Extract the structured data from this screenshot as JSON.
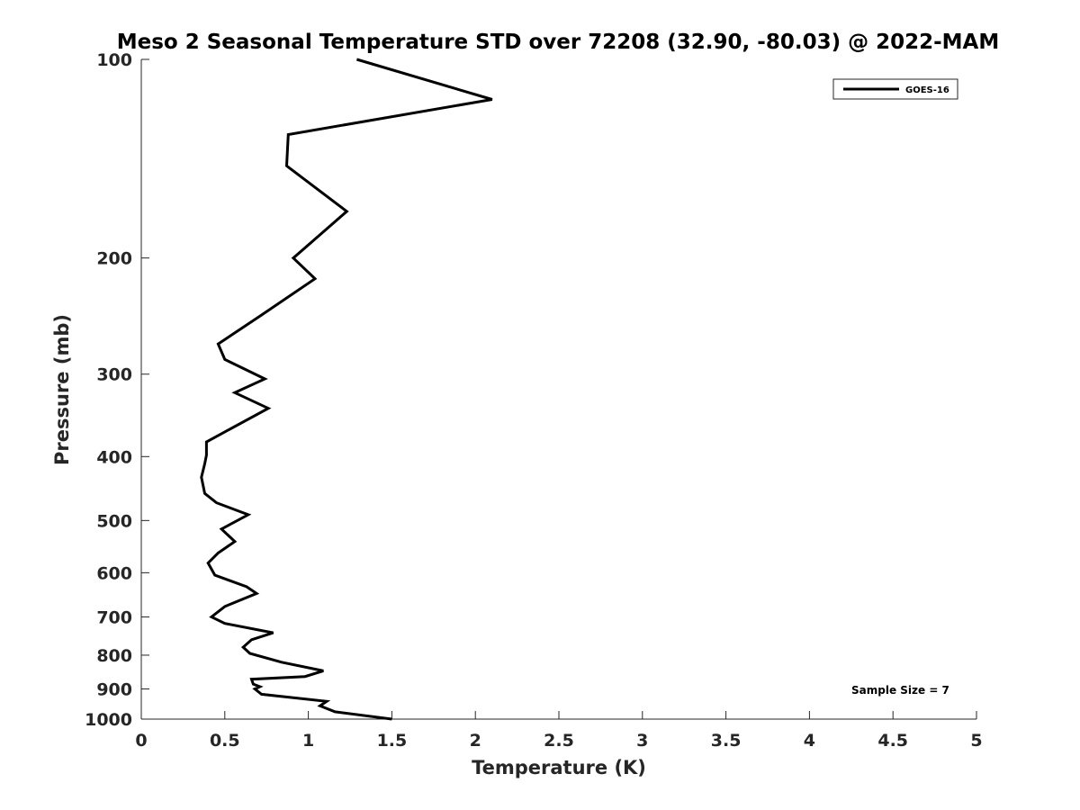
{
  "chart_data": {
    "type": "line",
    "title": "Meso 2 Seasonal Temperature STD over 72208 (32.90, -80.03) @ 2022-MAM",
    "xlabel": "Temperature (K)",
    "ylabel": "Pressure (mb)",
    "xlim": [
      0,
      5
    ],
    "ylim": [
      1000,
      100
    ],
    "yscale": "log",
    "y_reversed": true,
    "x_ticks": [
      0,
      0.5,
      1,
      1.5,
      2,
      2.5,
      3,
      3.5,
      4,
      4.5,
      5
    ],
    "x_tick_labels": [
      "0",
      "0.5",
      "1",
      "1.5",
      "2",
      "2.5",
      "3",
      "3.5",
      "4",
      "4.5",
      "5"
    ],
    "y_ticks": [
      100,
      200,
      300,
      400,
      500,
      600,
      700,
      800,
      900,
      1000
    ],
    "y_tick_labels": [
      "100",
      "200",
      "300",
      "400",
      "500",
      "600",
      "700",
      "800",
      "900",
      "1000"
    ],
    "grid": false,
    "legend_position": "top-right",
    "series": [
      {
        "name": "GOES-16",
        "color": "#000000",
        "x": [
          1.29,
          2.1,
          0.88,
          0.87,
          1.23,
          0.91,
          1.04,
          0.71,
          0.46,
          0.5,
          0.74,
          0.56,
          0.76,
          0.39,
          0.39,
          0.38,
          0.36,
          0.38,
          0.45,
          0.64,
          0.48,
          0.56,
          0.46,
          0.4,
          0.44,
          0.63,
          0.69,
          0.5,
          0.42,
          0.5,
          0.79,
          0.66,
          0.61,
          0.65,
          0.84,
          1.09,
          0.98,
          0.66,
          0.67,
          0.71,
          0.68,
          0.72,
          1.11,
          1.07,
          1.16,
          1.5
        ],
        "y": [
          100,
          115,
          130,
          145,
          170,
          200,
          215,
          245,
          270,
          285,
          305,
          320,
          338,
          380,
          398,
          410,
          430,
          455,
          470,
          490,
          515,
          538,
          560,
          580,
          605,
          630,
          645,
          675,
          700,
          716,
          740,
          758,
          778,
          795,
          820,
          845,
          862,
          870,
          885,
          893,
          900,
          917,
          940,
          955,
          975,
          1000
        ]
      }
    ]
  },
  "legend": {
    "entries": [
      "GOES-16"
    ]
  },
  "annotation": {
    "sample_size": "Sample Size = 7"
  }
}
